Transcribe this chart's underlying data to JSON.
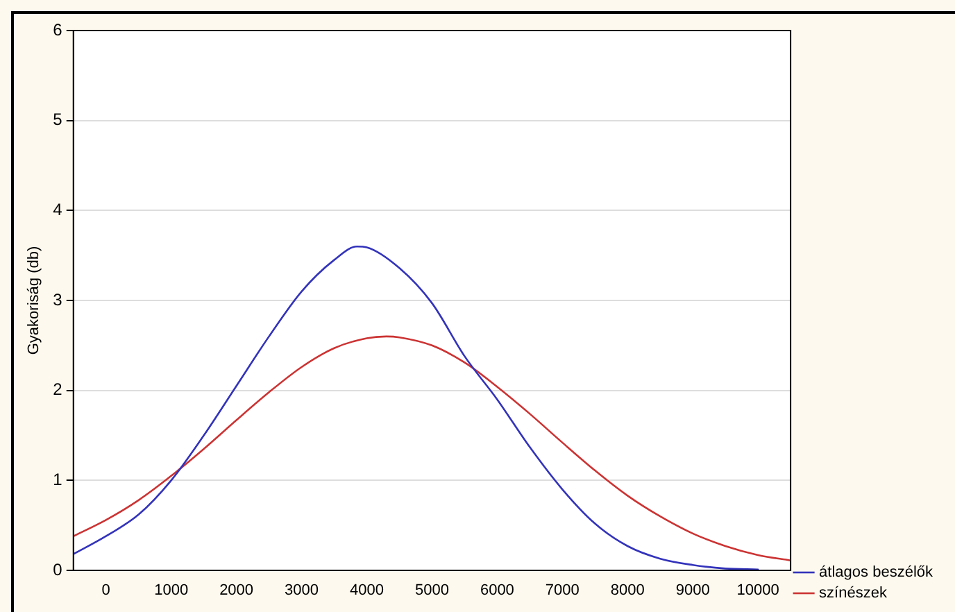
{
  "chart_data": {
    "type": "line",
    "ylabel": "Gyakoriság (db)",
    "xlim": [
      -500,
      10500
    ],
    "xticks": [
      0,
      1000,
      2000,
      3000,
      4000,
      5000,
      6000,
      7000,
      8000,
      9000,
      10000
    ],
    "ylim": [
      0,
      6
    ],
    "yticks": [
      0,
      1,
      2,
      3,
      4,
      5,
      6
    ],
    "grid": "y",
    "legend": "bottom right",
    "marker": "none",
    "line_style": "solid",
    "series": [
      {
        "name": "átlagos beszélők",
        "color": "#3333bb",
        "x": [
          -500,
          0,
          500,
          1000,
          1500,
          2000,
          2500,
          3000,
          3500,
          3850,
          4000,
          4500,
          5000,
          5500,
          6000,
          6500,
          7000,
          7500,
          8000,
          8500,
          9000,
          9500,
          10000
        ],
        "values": [
          0.18,
          0.38,
          0.62,
          1.0,
          1.5,
          2.05,
          2.6,
          3.1,
          3.45,
          3.6,
          3.59,
          3.36,
          2.97,
          2.38,
          1.9,
          1.37,
          0.9,
          0.52,
          0.27,
          0.13,
          0.06,
          0.02,
          0.01
        ]
      },
      {
        "name": "színészek",
        "color": "#cc3333",
        "x": [
          -500,
          0,
          500,
          1000,
          1500,
          2000,
          2500,
          3000,
          3500,
          4000,
          4300,
          4500,
          5000,
          5500,
          6000,
          6500,
          7000,
          7500,
          8000,
          8500,
          9000,
          9500,
          10000,
          10500
        ],
        "values": [
          0.38,
          0.56,
          0.78,
          1.05,
          1.35,
          1.67,
          1.98,
          2.26,
          2.47,
          2.58,
          2.6,
          2.59,
          2.5,
          2.31,
          2.04,
          1.74,
          1.42,
          1.11,
          0.83,
          0.6,
          0.41,
          0.27,
          0.17,
          0.11
        ]
      }
    ]
  }
}
